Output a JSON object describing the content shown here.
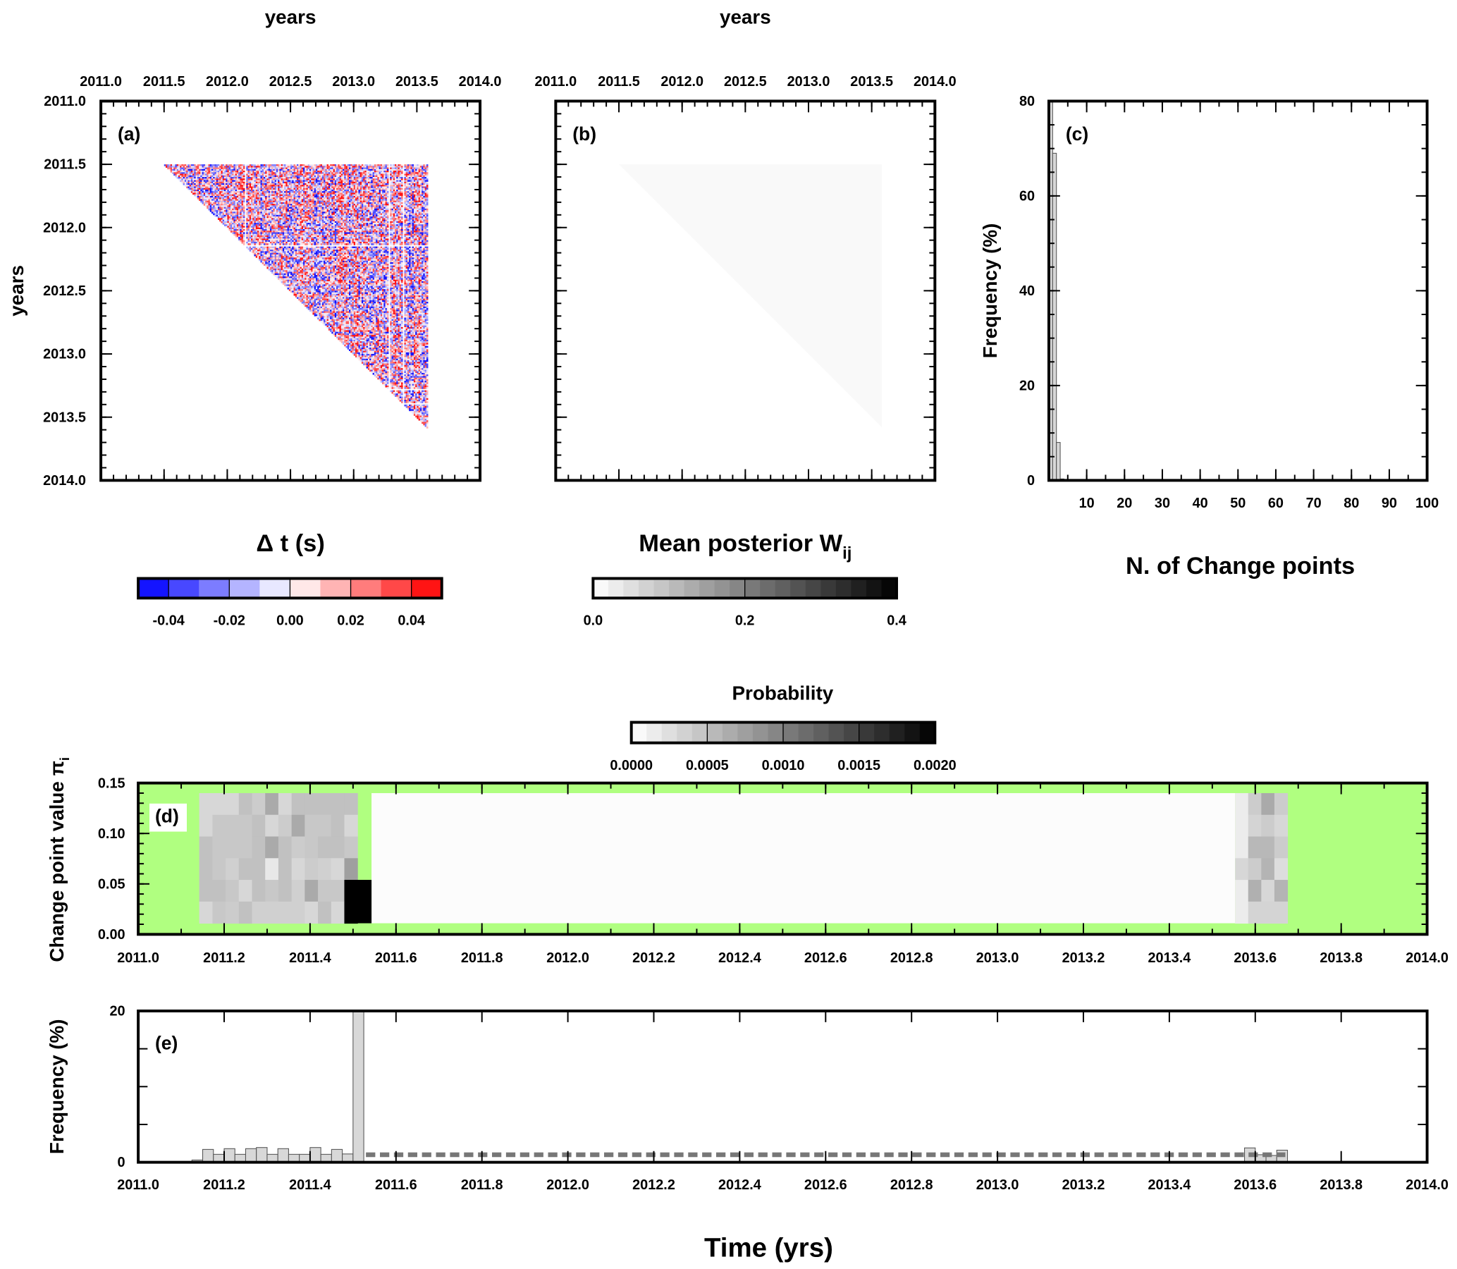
{
  "shared": {
    "time_label": "Time (yrs)"
  },
  "chart_data": [
    {
      "panel": "(a)",
      "type": "heatmap",
      "top_axis_label": "years",
      "left_axis_label": "years",
      "xlim": [
        2011.0,
        2014.0
      ],
      "ylim": [
        2014.0,
        2011.0
      ],
      "x_ticks": [
        "2011.0",
        "2011.5",
        "2012.0",
        "2012.5",
        "2013.0",
        "2013.5",
        "2014.0"
      ],
      "y_ticks": [
        "2011.0",
        "2011.5",
        "2012.0",
        "2012.5",
        "2013.0",
        "2013.5",
        "2014.0"
      ],
      "data_extent_years": [
        2011.5,
        2013.58
      ],
      "missing_years": [
        2012.14,
        2013.27,
        2013.39
      ],
      "colorbar": {
        "label": "Δ t (s)",
        "range": [
          -0.05,
          0.05
        ],
        "ticks": [
          "-0.04",
          "-0.02",
          "0.00",
          "0.02",
          "0.04"
        ],
        "colors": [
          "#1414ff",
          "#4848ff",
          "#7c7cff",
          "#b4b4ff",
          "#e8e8ff",
          "#ffe8e8",
          "#ffb4b4",
          "#ff7c7c",
          "#ff4848",
          "#ff1414"
        ]
      }
    },
    {
      "panel": "(b)",
      "type": "heatmap",
      "top_axis_label": "years",
      "xlim": [
        2011.0,
        2014.0
      ],
      "ylim": [
        2014.0,
        2011.0
      ],
      "x_ticks": [
        "2011.0",
        "2011.5",
        "2012.0",
        "2012.5",
        "2013.0",
        "2013.5",
        "2014.0"
      ],
      "data_extent_years": [
        2011.5,
        2013.58
      ],
      "approx_value": 0.01,
      "colorbar": {
        "label": "Mean posterior W",
        "label_subscript": "ij",
        "range": [
          0.0,
          0.4
        ],
        "ticks": [
          "0.0",
          "0.2",
          "0.4"
        ],
        "steps": 20
      }
    },
    {
      "panel": "(c)",
      "type": "bar",
      "xlabel": "N. of Change points",
      "ylabel": "Frequency (%)",
      "xlim": [
        0,
        100
      ],
      "ylim": [
        0,
        80
      ],
      "x_ticks": [
        "10",
        "20",
        "30",
        "40",
        "50",
        "60",
        "70",
        "80",
        "90",
        "100"
      ],
      "y_ticks": [
        "0",
        "20",
        "40",
        "60",
        "80"
      ],
      "bars": [
        {
          "n": 1,
          "value": 80
        },
        {
          "n": 2,
          "value": 69
        },
        {
          "n": 3,
          "value": 8
        },
        {
          "n": 4,
          "value": 0.3
        }
      ]
    },
    {
      "panel": "(d)",
      "type": "heatmap",
      "ylabel": "Change point value π",
      "ylabel_subscript": "i",
      "xlim": [
        2011.0,
        2014.0
      ],
      "ylim": [
        0.0,
        0.15
      ],
      "x_ticks": [
        "2011.0",
        "2011.2",
        "2011.4",
        "2011.6",
        "2011.8",
        "2012.0",
        "2012.2",
        "2012.4",
        "2012.6",
        "2012.8",
        "2013.0",
        "2013.2",
        "2013.4",
        "2013.6",
        "2013.8",
        "2014.0"
      ],
      "y_ticks": [
        "0.00",
        "0.05",
        "0.10",
        "0.15"
      ],
      "background_color": "#b0ff80",
      "value_rows_range": [
        0.011,
        0.14
      ],
      "left_block": {
        "x_start": 2011.142,
        "bin_width": 0.0307,
        "values": [
          [
            0.00031,
            0.00031,
            0.00031,
            0.00049,
            0.0004,
            0.00067,
            0.00031,
            0.00049,
            0.00049,
            0.00049,
            0.00049,
            0.00049
          ],
          [
            0.00031,
            0.00043,
            0.00043,
            0.00043,
            0.00049,
            0.00031,
            0.0004,
            0.00067,
            0.00043,
            0.00043,
            0.00049,
            0.00031
          ],
          [
            0.00049,
            0.00043,
            0.00043,
            0.00043,
            0.00049,
            0.00067,
            0.00049,
            0.0004,
            0.00043,
            0.00049,
            0.00049,
            0.00043
          ],
          [
            0.00049,
            0.00043,
            0.00037,
            0.00049,
            0.00049,
            0.00018,
            0.00049,
            0.00031,
            0.0004,
            0.00037,
            0.00031,
            0.00075
          ],
          [
            0.00049,
            0.00049,
            0.00043,
            0.00031,
            0.00049,
            0.00043,
            0.00049,
            0.00037,
            0.00067,
            0.00043,
            0.00043,
            0.002
          ],
          [
            0.00031,
            0.00043,
            0.0004,
            0.00049,
            0.00037,
            0.00037,
            0.00037,
            0.00037,
            0.00031,
            0.00049,
            0.00031,
            0.002
          ]
        ]
      },
      "peak_cell": {
        "x": [
          2011.48,
          2011.543
        ],
        "y": [
          0.011,
          0.054
        ],
        "value": 0.002
      },
      "middle_block": {
        "x": [
          2011.543,
          2013.553
        ],
        "value": 2e-05
      },
      "right_block": {
        "x_start": 2013.553,
        "bin_width": 0.0305,
        "values": [
          [
            0.00015,
            0.0004,
            0.00067,
            0.0004
          ],
          [
            0.00015,
            0.00034,
            0.0004,
            0.00031
          ],
          [
            0.00015,
            0.00056,
            0.00056,
            0.0004
          ],
          [
            0.00031,
            0.0004,
            0.00059,
            0.00027
          ],
          [
            0.00015,
            0.00062,
            0.00031,
            0.00059
          ],
          [
            0.00015,
            0.00034,
            0.00034,
            0.00034
          ]
        ]
      },
      "colorbar": {
        "label": "Probability",
        "range": [
          0.0,
          0.002
        ],
        "ticks": [
          "0.0000",
          "0.0005",
          "0.0010",
          "0.0015",
          "0.0020"
        ],
        "steps": 20
      }
    },
    {
      "panel": "(e)",
      "type": "bar",
      "ylabel": "Frequency (%)",
      "xlim": [
        2011.0,
        2014.0
      ],
      "ylim": [
        0,
        20
      ],
      "x_ticks": [
        "2011.0",
        "2011.2",
        "2011.4",
        "2011.6",
        "2011.8",
        "2012.0",
        "2012.2",
        "2012.4",
        "2012.6",
        "2012.8",
        "2013.0",
        "2013.2",
        "2013.4",
        "2013.6",
        "2013.8",
        "2014.0"
      ],
      "y_ticks": [
        "0",
        "20"
      ],
      "bin_width": 0.025,
      "bars": [
        {
          "x": 2011.125,
          "value": 0.3
        },
        {
          "x": 2011.15,
          "value": 1.7
        },
        {
          "x": 2011.175,
          "value": 1.05
        },
        {
          "x": 2011.2,
          "value": 1.8
        },
        {
          "x": 2011.225,
          "value": 1.05
        },
        {
          "x": 2011.25,
          "value": 1.8
        },
        {
          "x": 2011.275,
          "value": 1.95
        },
        {
          "x": 2011.3,
          "value": 1.05
        },
        {
          "x": 2011.325,
          "value": 1.8
        },
        {
          "x": 2011.35,
          "value": 1.05
        },
        {
          "x": 2011.375,
          "value": 1.05
        },
        {
          "x": 2011.4,
          "value": 1.95
        },
        {
          "x": 2011.425,
          "value": 1.05
        },
        {
          "x": 2011.45,
          "value": 1.7
        },
        {
          "x": 2011.475,
          "value": 1.1
        },
        {
          "x": 2011.5,
          "value": 20
        },
        {
          "x": 2013.575,
          "value": 1.9
        },
        {
          "x": 2013.6,
          "value": 1.0
        },
        {
          "x": 2013.625,
          "value": 0.9
        },
        {
          "x": 2013.65,
          "value": 1.6
        }
      ],
      "dashed_line": {
        "x": [
          2011.53,
          2013.67
        ],
        "y": 1.0,
        "color": "#777777"
      }
    }
  ]
}
